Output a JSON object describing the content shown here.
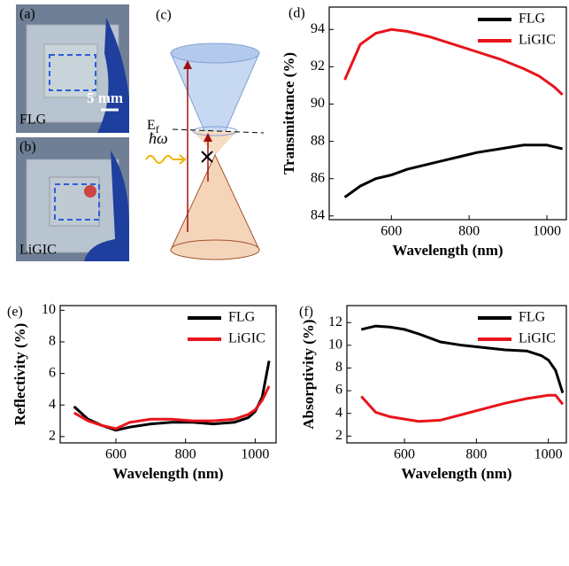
{
  "photos": {
    "a": {
      "panel": "(a)",
      "sample": "FLG",
      "scale": "5 mm"
    },
    "b": {
      "panel": "(b)",
      "sample": "LiGIC"
    }
  },
  "diagram": {
    "panel": "(c)",
    "fermi": "E",
    "fermi_sub": "f",
    "photon": "ħω"
  },
  "chart_data": [
    {
      "type": "line",
      "panel": "(d)",
      "xlabel": "Wavelength (nm)",
      "ylabel": "Transmittance (%)",
      "x": [
        480,
        520,
        560,
        600,
        640,
        700,
        760,
        820,
        880,
        940,
        980,
        1000,
        1020,
        1040
      ],
      "series": [
        {
          "name": "FLG",
          "color": "#000000",
          "values": [
            85.0,
            85.6,
            86.0,
            86.2,
            86.5,
            86.8,
            87.1,
            87.4,
            87.6,
            87.8,
            87.8,
            87.8,
            87.7,
            87.6
          ]
        },
        {
          "name": "LiGIC",
          "color": "#e8141b",
          "values": [
            91.3,
            93.2,
            93.8,
            94.0,
            93.9,
            93.6,
            93.2,
            92.8,
            92.4,
            91.9,
            91.5,
            91.2,
            90.9,
            90.5
          ]
        }
      ],
      "xlim": [
        440,
        1050
      ],
      "xticks": [
        600,
        800,
        1000
      ],
      "ylim": [
        83.8,
        95.2
      ],
      "yticks": [
        84,
        86,
        88,
        90,
        92,
        94
      ],
      "legend": "upper right"
    },
    {
      "type": "line",
      "panel": "(e)",
      "xlabel": "Wavelength (nm)",
      "ylabel": "Reflectivity (%)",
      "x": [
        480,
        520,
        560,
        600,
        640,
        700,
        760,
        820,
        880,
        940,
        980,
        1000,
        1020,
        1040
      ],
      "series": [
        {
          "name": "FLG",
          "color": "#000000",
          "values": [
            3.9,
            3.1,
            2.7,
            2.4,
            2.6,
            2.8,
            2.9,
            2.9,
            2.8,
            2.9,
            3.2,
            3.6,
            4.5,
            6.8
          ]
        },
        {
          "name": "LiGIC",
          "color": "#e8141b",
          "values": [
            3.5,
            3.0,
            2.7,
            2.5,
            2.9,
            3.1,
            3.1,
            3.0,
            3.0,
            3.1,
            3.4,
            3.7,
            4.3,
            5.2
          ]
        }
      ],
      "xlim": [
        440,
        1060
      ],
      "xticks": [
        600,
        800,
        1000
      ],
      "ylim": [
        1.6,
        10.3
      ],
      "yticks": [
        2,
        4,
        6,
        8,
        10
      ],
      "legend": "upper right"
    },
    {
      "type": "line",
      "panel": "(f)",
      "xlabel": "Wavelength (nm)",
      "ylabel": "Absorptivity (%)",
      "x": [
        480,
        520,
        560,
        600,
        640,
        700,
        760,
        820,
        880,
        940,
        980,
        1000,
        1020,
        1040
      ],
      "series": [
        {
          "name": "FLG",
          "color": "#000000",
          "values": [
            11.4,
            11.7,
            11.6,
            11.4,
            11.0,
            10.3,
            10.0,
            9.8,
            9.6,
            9.5,
            9.1,
            8.7,
            7.8,
            5.8
          ]
        },
        {
          "name": "LiGIC",
          "color": "#e8141b",
          "values": [
            5.5,
            4.1,
            3.7,
            3.5,
            3.3,
            3.4,
            3.9,
            4.4,
            4.9,
            5.3,
            5.5,
            5.6,
            5.6,
            4.8
          ]
        }
      ],
      "xlim": [
        440,
        1050
      ],
      "xticks": [
        600,
        800,
        1000
      ],
      "ylim": [
        1.4,
        13.5
      ],
      "yticks": [
        2,
        4,
        6,
        8,
        10,
        12
      ],
      "legend": "upper right"
    }
  ]
}
